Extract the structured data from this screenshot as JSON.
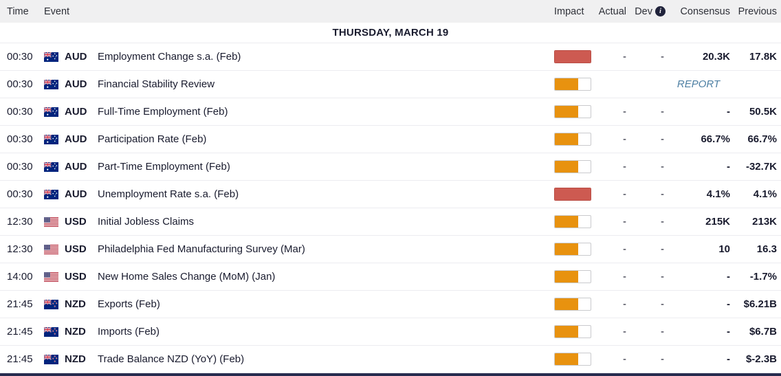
{
  "colors": {
    "impact_high": "#cd5a51",
    "impact_medium": "#e8920f",
    "report_link": "#4d7fa3",
    "header_bg": "#f0f0f1",
    "text_primary": "#191b2e"
  },
  "table": {
    "columns": {
      "time": "Time",
      "event": "Event",
      "impact": "Impact",
      "actual": "Actual",
      "dev": "Dev",
      "consensus": "Consensus",
      "previous": "Previous"
    },
    "dev_info_icon": "i",
    "date_header": "THURSDAY, MARCH 19",
    "rows": [
      {
        "time": "00:30",
        "flag": "AU",
        "currency": "AUD",
        "event": "Employment Change s.a. (Feb)",
        "impact": "high",
        "actual": "-",
        "dev": "-",
        "consensus": "20.3K",
        "previous": "17.8K"
      },
      {
        "time": "00:30",
        "flag": "AU",
        "currency": "AUD",
        "event": "Financial Stability Review",
        "impact": "medium",
        "actual": "",
        "dev": "",
        "consensus": "REPORT",
        "previous": "",
        "report": true
      },
      {
        "time": "00:30",
        "flag": "AU",
        "currency": "AUD",
        "event": "Full-Time Employment (Feb)",
        "impact": "medium",
        "actual": "-",
        "dev": "-",
        "consensus": "-",
        "previous": "50.5K"
      },
      {
        "time": "00:30",
        "flag": "AU",
        "currency": "AUD",
        "event": "Participation Rate (Feb)",
        "impact": "medium",
        "actual": "-",
        "dev": "-",
        "consensus": "66.7%",
        "previous": "66.7%"
      },
      {
        "time": "00:30",
        "flag": "AU",
        "currency": "AUD",
        "event": "Part-Time Employment (Feb)",
        "impact": "medium",
        "actual": "-",
        "dev": "-",
        "consensus": "-",
        "previous": "-32.7K"
      },
      {
        "time": "00:30",
        "flag": "AU",
        "currency": "AUD",
        "event": "Unemployment Rate s.a. (Feb)",
        "impact": "high",
        "actual": "-",
        "dev": "-",
        "consensus": "4.1%",
        "previous": "4.1%"
      },
      {
        "time": "12:30",
        "flag": "US",
        "currency": "USD",
        "event": "Initial Jobless Claims",
        "impact": "medium",
        "actual": "-",
        "dev": "-",
        "consensus": "215K",
        "previous": "213K"
      },
      {
        "time": "12:30",
        "flag": "US",
        "currency": "USD",
        "event": "Philadelphia Fed Manufacturing Survey (Mar)",
        "impact": "medium",
        "actual": "-",
        "dev": "-",
        "consensus": "10",
        "previous": "16.3"
      },
      {
        "time": "14:00",
        "flag": "US",
        "currency": "USD",
        "event": "New Home Sales Change (MoM) (Jan)",
        "impact": "medium",
        "actual": "-",
        "dev": "-",
        "consensus": "-",
        "previous": "-1.7%"
      },
      {
        "time": "21:45",
        "flag": "NZ",
        "currency": "NZD",
        "event": "Exports (Feb)",
        "impact": "medium",
        "actual": "-",
        "dev": "-",
        "consensus": "-",
        "previous": "$6.21B"
      },
      {
        "time": "21:45",
        "flag": "NZ",
        "currency": "NZD",
        "event": "Imports (Feb)",
        "impact": "medium",
        "actual": "-",
        "dev": "-",
        "consensus": "-",
        "previous": "$6.7B"
      },
      {
        "time": "21:45",
        "flag": "NZ",
        "currency": "NZD",
        "event": "Trade Balance NZD (YoY) (Feb)",
        "impact": "medium",
        "actual": "-",
        "dev": "-",
        "consensus": "-",
        "previous": "$-2.3B"
      }
    ]
  }
}
